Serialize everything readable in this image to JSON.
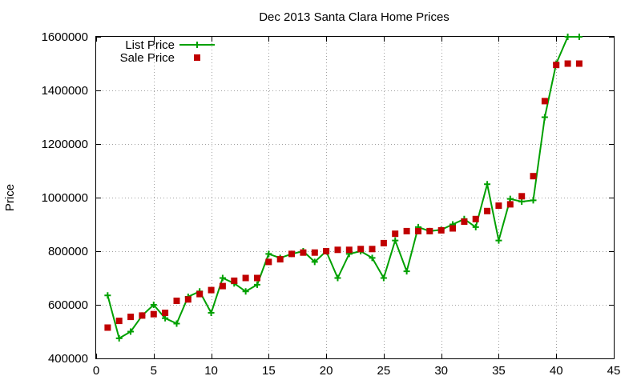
{
  "chart_data": {
    "type": "line",
    "title": "Dec 2013 Santa Clara Home Prices",
    "xlabel": "",
    "ylabel": "Price",
    "xlim": [
      0,
      45
    ],
    "ylim": [
      400000,
      1600000
    ],
    "x_ticks": [
      0,
      5,
      10,
      15,
      20,
      25,
      30,
      35,
      40,
      45
    ],
    "y_ticks": [
      400000,
      600000,
      800000,
      1000000,
      1200000,
      1400000,
      1600000
    ],
    "x_tick_labels": [
      "0",
      "5",
      "10",
      "15",
      "20",
      "25",
      "30",
      "35",
      "40",
      "45"
    ],
    "y_tick_labels": [
      "400000",
      "600000",
      "800000",
      "1000000",
      "1200000",
      "1400000",
      "1600000"
    ],
    "grid": true,
    "legend_position": "top-left",
    "series": [
      {
        "name": "List Price",
        "style": "linespoints",
        "color": "#00a000",
        "x": [
          1,
          2,
          3,
          4,
          5,
          6,
          7,
          8,
          9,
          10,
          11,
          12,
          13,
          14,
          15,
          16,
          17,
          18,
          19,
          20,
          21,
          22,
          23,
          24,
          25,
          26,
          27,
          28,
          29,
          30,
          31,
          32,
          33,
          34,
          35,
          36,
          37,
          38,
          39,
          40,
          41,
          42
        ],
        "y": [
          635000,
          475000,
          500000,
          560000,
          600000,
          550000,
          530000,
          630000,
          650000,
          570000,
          700000,
          680000,
          650000,
          675000,
          790000,
          775000,
          790000,
          800000,
          760000,
          800000,
          700000,
          790000,
          800000,
          775000,
          700000,
          840000,
          725000,
          890000,
          875000,
          880000,
          900000,
          920000,
          890000,
          1050000,
          840000,
          995000,
          985000,
          990000,
          1300000,
          1500000,
          1600000,
          1600000
        ]
      },
      {
        "name": "Sale Price",
        "style": "points",
        "color": "#c00000",
        "x": [
          1,
          2,
          3,
          4,
          5,
          6,
          7,
          8,
          9,
          10,
          11,
          12,
          13,
          14,
          15,
          16,
          17,
          18,
          19,
          20,
          21,
          22,
          23,
          24,
          25,
          26,
          27,
          28,
          29,
          30,
          31,
          32,
          33,
          34,
          35,
          36,
          37,
          38,
          39,
          40,
          41,
          42
        ],
        "y": [
          515000,
          540000,
          555000,
          560000,
          565000,
          570000,
          615000,
          620000,
          640000,
          655000,
          670000,
          690000,
          700000,
          700000,
          760000,
          770000,
          790000,
          795000,
          795000,
          800000,
          805000,
          805000,
          808000,
          808000,
          830000,
          865000,
          875000,
          875000,
          875000,
          878000,
          885000,
          910000,
          920000,
          950000,
          970000,
          975000,
          1005000,
          1080000,
          1360000,
          1495000,
          1500000,
          1500000
        ]
      }
    ]
  }
}
